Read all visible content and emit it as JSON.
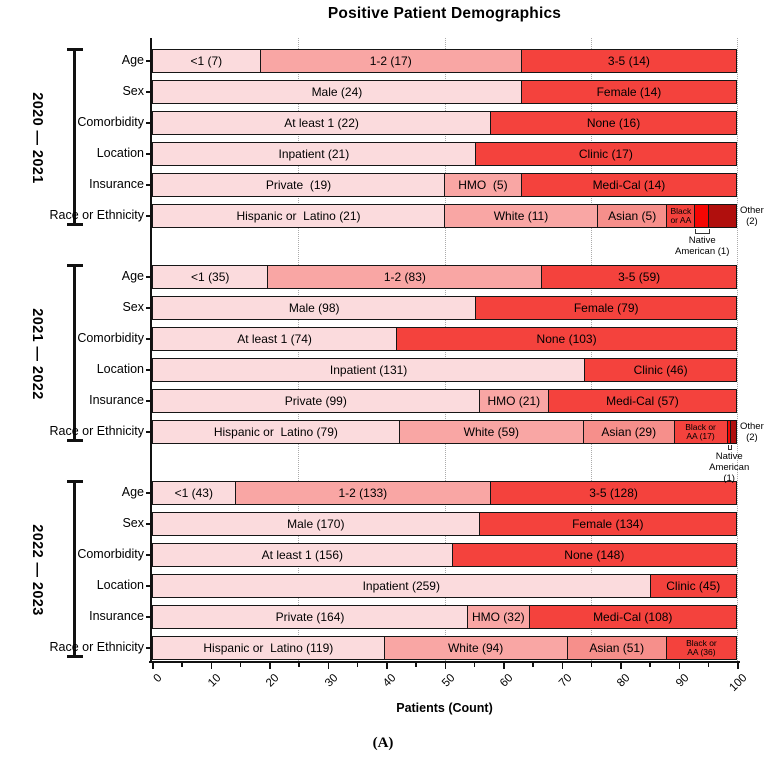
{
  "title": "Positive Patient Demographics",
  "caption": "(A)",
  "colors": {
    "light": "#fbdbdd",
    "medium": "#f9a6a4",
    "salmon": "#f68f8b",
    "red": "#f4423d",
    "bright_red": "#f50603",
    "dark_red": "#b00f0d"
  },
  "chart_data": {
    "type": "bar",
    "orientation": "horizontal",
    "stacked_percent": true,
    "title": "Positive Patient Demographics",
    "xlabel": "Patients (Count)",
    "xlim": [
      0,
      100
    ],
    "x_ticks": [
      0,
      10,
      20,
      30,
      40,
      50,
      60,
      70,
      80,
      90,
      100
    ],
    "x_minor_step": 5,
    "gridlines_at": [
      25,
      50,
      75,
      100
    ],
    "grid_style": "dotted",
    "groups": [
      {
        "label": "2020 — 2021",
        "rows": [
          {
            "category": "Age",
            "segments": [
              {
                "label": "<1 (7)",
                "count": 7,
                "color": "light"
              },
              {
                "label": "1-2 (17)",
                "count": 17,
                "color": "medium"
              },
              {
                "label": "3-5 (14)",
                "count": 14,
                "color": "red"
              }
            ]
          },
          {
            "category": "Sex",
            "segments": [
              {
                "label": "Male (24)",
                "count": 24,
                "color": "light"
              },
              {
                "label": "Female (14)",
                "count": 14,
                "color": "red"
              }
            ]
          },
          {
            "category": "Comorbidity",
            "segments": [
              {
                "label": "At least 1 (22)",
                "count": 22,
                "color": "light"
              },
              {
                "label": "None (16)",
                "count": 16,
                "color": "red"
              }
            ]
          },
          {
            "category": "Location",
            "segments": [
              {
                "label": "Inpatient (21)",
                "count": 21,
                "color": "light"
              },
              {
                "label": "Clinic (17)",
                "count": 17,
                "color": "red"
              }
            ]
          },
          {
            "category": "Insurance",
            "segments": [
              {
                "label": "Private  (19)",
                "count": 19,
                "color": "light"
              },
              {
                "label": "HMO  (5)",
                "count": 5,
                "color": "medium"
              },
              {
                "label": "Medi-Cal (14)",
                "count": 14,
                "color": "red"
              }
            ]
          },
          {
            "category": "Race or Ethnicity",
            "segments": [
              {
                "label": "Hispanic or  Latino (21)",
                "count": 21,
                "color": "light"
              },
              {
                "label": "White (11)",
                "count": 11,
                "color": "medium"
              },
              {
                "label": "Asian (5)",
                "count": 5,
                "color": "salmon"
              },
              {
                "label": "Black\nor AA",
                "count": 2,
                "color": "red",
                "small": true
              },
              {
                "label": "",
                "count": 1,
                "color": "bright_red",
                "below_label": "Native\nAmerican (1)"
              },
              {
                "label": "",
                "count": 2,
                "color": "dark_red",
                "right_label": "Other\n(2)"
              }
            ]
          }
        ]
      },
      {
        "label": "2021 — 2022",
        "rows": [
          {
            "category": "Age",
            "segments": [
              {
                "label": "<1 (35)",
                "count": 35,
                "color": "light"
              },
              {
                "label": "1-2 (83)",
                "count": 83,
                "color": "medium"
              },
              {
                "label": "3-5 (59)",
                "count": 59,
                "color": "red"
              }
            ]
          },
          {
            "category": "Sex",
            "segments": [
              {
                "label": "Male (98)",
                "count": 98,
                "color": "light"
              },
              {
                "label": "Female (79)",
                "count": 79,
                "color": "red"
              }
            ]
          },
          {
            "category": "Comorbidity",
            "segments": [
              {
                "label": "At least 1 (74)",
                "count": 74,
                "color": "light"
              },
              {
                "label": "None (103)",
                "count": 103,
                "color": "red"
              }
            ]
          },
          {
            "category": "Location",
            "segments": [
              {
                "label": "Inpatient (131)",
                "count": 131,
                "color": "light"
              },
              {
                "label": "Clinic (46)",
                "count": 46,
                "color": "red"
              }
            ]
          },
          {
            "category": "Insurance",
            "segments": [
              {
                "label": "Private (99)",
                "count": 99,
                "color": "light"
              },
              {
                "label": "HMO (21)",
                "count": 21,
                "color": "medium"
              },
              {
                "label": "Medi-Cal (57)",
                "count": 57,
                "color": "red"
              }
            ]
          },
          {
            "category": "Race or Ethnicity",
            "segments": [
              {
                "label": "Hispanic or  Latino (79)",
                "count": 79,
                "color": "light"
              },
              {
                "label": "White (59)",
                "count": 59,
                "color": "medium"
              },
              {
                "label": "Asian (29)",
                "count": 29,
                "color": "salmon"
              },
              {
                "label": "Black or\nAA (17)",
                "count": 17,
                "color": "red",
                "small": true
              },
              {
                "label": "",
                "count": 1,
                "color": "bright_red",
                "below_label": "Native\nAmerican (1)"
              },
              {
                "label": "",
                "count": 2,
                "color": "dark_red",
                "right_label": "Other\n(2)"
              }
            ]
          }
        ]
      },
      {
        "label": "2022 — 2023",
        "rows": [
          {
            "category": "Age",
            "segments": [
              {
                "label": "<1 (43)",
                "count": 43,
                "color": "light"
              },
              {
                "label": "1-2 (133)",
                "count": 133,
                "color": "medium"
              },
              {
                "label": "3-5 (128)",
                "count": 128,
                "color": "red"
              }
            ]
          },
          {
            "category": "Sex",
            "segments": [
              {
                "label": "Male (170)",
                "count": 170,
                "color": "light"
              },
              {
                "label": "Female (134)",
                "count": 134,
                "color": "red"
              }
            ]
          },
          {
            "category": "Comorbidity",
            "segments": [
              {
                "label": "At least 1 (156)",
                "count": 156,
                "color": "light"
              },
              {
                "label": "None (148)",
                "count": 148,
                "color": "red"
              }
            ]
          },
          {
            "category": "Location",
            "segments": [
              {
                "label": "Inpatient (259)",
                "count": 259,
                "color": "light"
              },
              {
                "label": "Clinic (45)",
                "count": 45,
                "color": "red"
              }
            ]
          },
          {
            "category": "Insurance",
            "segments": [
              {
                "label": "Private (164)",
                "count": 164,
                "color": "light"
              },
              {
                "label": "HMO (32)",
                "count": 32,
                "color": "medium"
              },
              {
                "label": "Medi-Cal (108)",
                "count": 108,
                "color": "red"
              }
            ]
          },
          {
            "category": "Race or Ethnicity",
            "segments": [
              {
                "label": "Hispanic or  Latino (119)",
                "count": 119,
                "color": "light"
              },
              {
                "label": "White (94)",
                "count": 94,
                "color": "medium"
              },
              {
                "label": "Asian (51)",
                "count": 51,
                "color": "salmon"
              },
              {
                "label": "Black or\nAA (36)",
                "count": 36,
                "color": "red",
                "small": true
              }
            ]
          }
        ]
      }
    ]
  }
}
